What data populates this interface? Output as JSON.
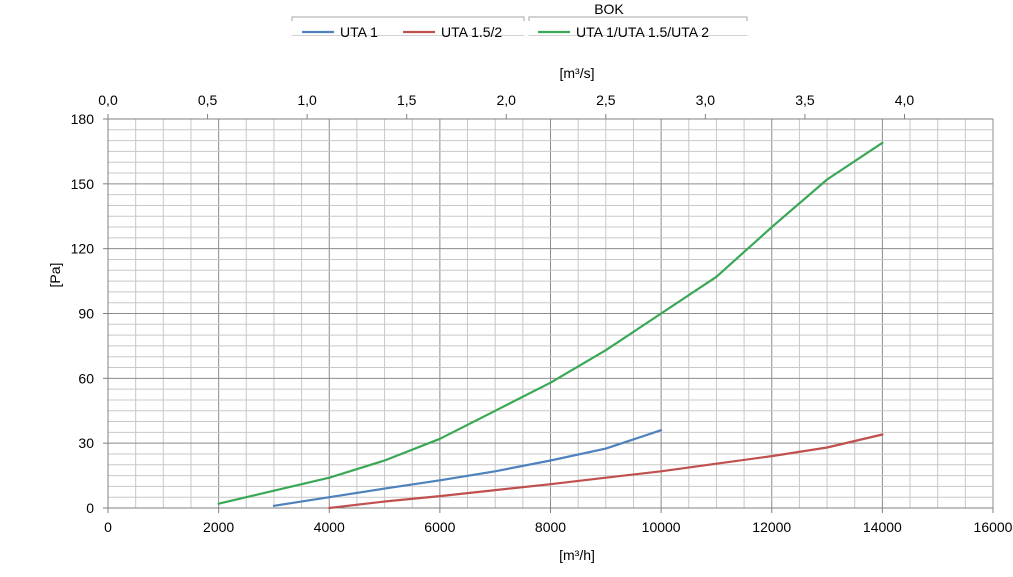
{
  "chart_data": {
    "type": "line",
    "title": "BOK",
    "xlabel": "[m³/h]",
    "x2label": "[m³/s]",
    "ylabel": "[Pa]",
    "xlim": [
      0,
      16000
    ],
    "ylim": [
      0,
      180
    ],
    "x2_scale_factor": 0.000277778,
    "x_ticks": [
      "0",
      "2000",
      "4000",
      "6000",
      "8000",
      "10000",
      "12000",
      "14000",
      "16000"
    ],
    "x2_ticks": [
      "0,0",
      "0,5",
      "1,0",
      "1,5",
      "2,0",
      "2,5",
      "3,0",
      "3,5",
      "4,0"
    ],
    "y_ticks": [
      "0",
      "30",
      "60",
      "90",
      "120",
      "150",
      "180"
    ],
    "grid": true,
    "legend_position": "top",
    "series": [
      {
        "name": "UTA 1",
        "color": "#4f81bd",
        "points": [
          [
            3000,
            1
          ],
          [
            4000,
            5
          ],
          [
            5000,
            9
          ],
          [
            6000,
            12.8
          ],
          [
            7000,
            17
          ],
          [
            8000,
            22
          ],
          [
            9000,
            27.5
          ],
          [
            10000,
            36
          ]
        ]
      },
      {
        "name": "UTA 1.5/2",
        "color": "#c0504d",
        "points": [
          [
            4000,
            0
          ],
          [
            5000,
            3
          ],
          [
            6000,
            5.5
          ],
          [
            7000,
            8.3
          ],
          [
            8000,
            11
          ],
          [
            9000,
            14
          ],
          [
            10000,
            17
          ],
          [
            11000,
            20.5
          ],
          [
            12000,
            24
          ],
          [
            13000,
            28
          ],
          [
            14000,
            34
          ]
        ]
      },
      {
        "name": "UTA 1/UTA 1.5/UTA 2",
        "color": "#3aa857",
        "points": [
          [
            2000,
            2
          ],
          [
            3000,
            8
          ],
          [
            4000,
            14
          ],
          [
            5000,
            22
          ],
          [
            6000,
            32
          ],
          [
            7000,
            45
          ],
          [
            8000,
            58
          ],
          [
            9000,
            73
          ],
          [
            10000,
            90
          ],
          [
            11000,
            107
          ],
          [
            12000,
            130
          ],
          [
            13000,
            152
          ],
          [
            14000,
            169
          ]
        ]
      }
    ]
  }
}
